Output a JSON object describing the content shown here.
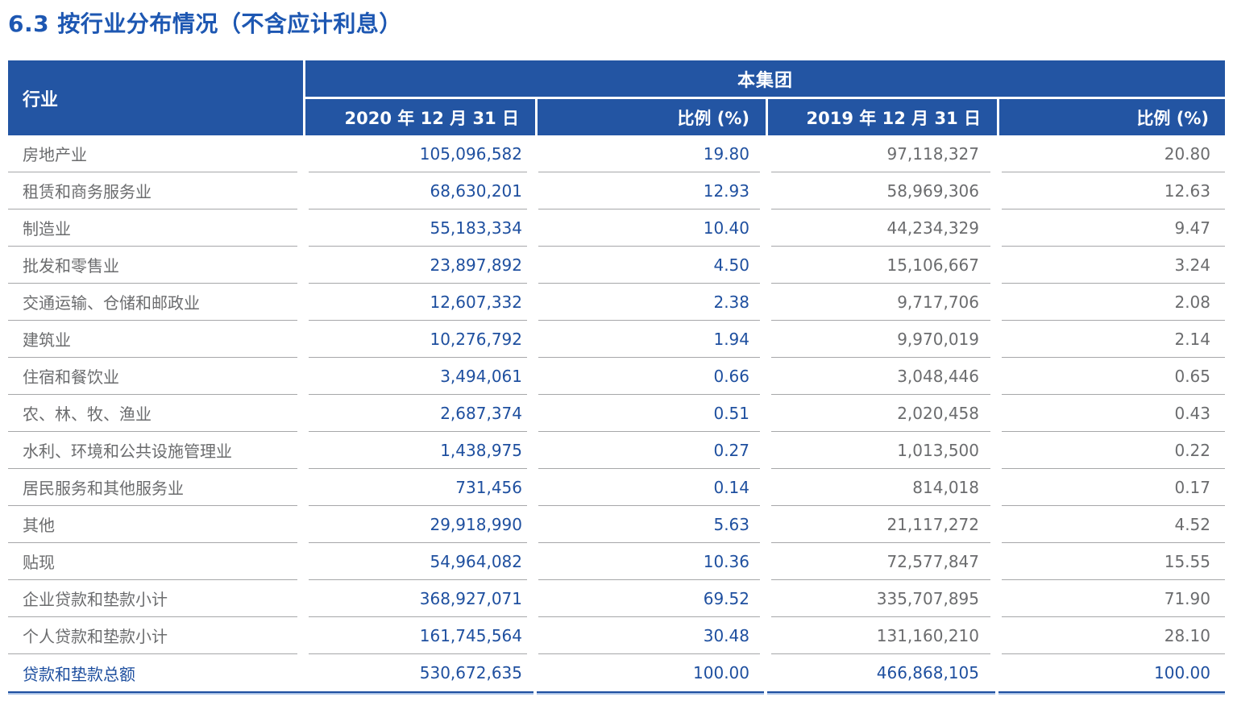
{
  "title": "6.3 按行业分布情况（不含应计利息）",
  "table": {
    "industry_header": "行业",
    "group_header": "本集团",
    "columns": [
      "2020 年 12 月 31 日",
      "比例 (%)",
      "2019 年 12 月 31 日",
      "比例 (%)"
    ],
    "rows": [
      {
        "industry": "房地产业",
        "v2020": "105,096,582",
        "p2020": "19.80",
        "v2019": "97,118,327",
        "p2019": "20.80"
      },
      {
        "industry": "租赁和商务服务业",
        "v2020": "68,630,201",
        "p2020": "12.93",
        "v2019": "58,969,306",
        "p2019": "12.63"
      },
      {
        "industry": "制造业",
        "v2020": "55,183,334",
        "p2020": "10.40",
        "v2019": "44,234,329",
        "p2019": "9.47"
      },
      {
        "industry": "批发和零售业",
        "v2020": "23,897,892",
        "p2020": "4.50",
        "v2019": "15,106,667",
        "p2019": "3.24"
      },
      {
        "industry": "交通运输、仓储和邮政业",
        "v2020": "12,607,332",
        "p2020": "2.38",
        "v2019": "9,717,706",
        "p2019": "2.08"
      },
      {
        "industry": "建筑业",
        "v2020": "10,276,792",
        "p2020": "1.94",
        "v2019": "9,970,019",
        "p2019": "2.14"
      },
      {
        "industry": "住宿和餐饮业",
        "v2020": "3,494,061",
        "p2020": "0.66",
        "v2019": "3,048,446",
        "p2019": "0.65"
      },
      {
        "industry": "农、林、牧、渔业",
        "v2020": "2,687,374",
        "p2020": "0.51",
        "v2019": "2,020,458",
        "p2019": "0.43"
      },
      {
        "industry": "水利、环境和公共设施管理业",
        "v2020": "1,438,975",
        "p2020": "0.27",
        "v2019": "1,013,500",
        "p2019": "0.22"
      },
      {
        "industry": "居民服务和其他服务业",
        "v2020": "731,456",
        "p2020": "0.14",
        "v2019": "814,018",
        "p2019": "0.17"
      },
      {
        "industry": "其他",
        "v2020": "29,918,990",
        "p2020": "5.63",
        "v2019": "21,117,272",
        "p2019": "4.52"
      },
      {
        "industry": "贴现",
        "v2020": "54,964,082",
        "p2020": "10.36",
        "v2019": "72,577,847",
        "p2019": "15.55"
      },
      {
        "industry": "企业贷款和垫款小计",
        "v2020": "368,927,071",
        "p2020": "69.52",
        "v2019": "335,707,895",
        "p2019": "71.90"
      },
      {
        "industry": "个人贷款和垫款小计",
        "v2020": "161,745,564",
        "p2020": "30.48",
        "v2019": "131,160,210",
        "p2019": "28.10"
      }
    ],
    "total_row": {
      "industry": "贷款和垫款总额",
      "v2020": "530,672,635",
      "p2020": "100.00",
      "v2019": "466,868,105",
      "p2019": "100.00"
    }
  },
  "colors": {
    "header_bg": "#2355A3",
    "title_blue": "#1D57B2",
    "number_blue": "#1E4F9F",
    "text_gray": "#6B6C6E",
    "separator_gray": "#A6A7A9",
    "bottom_rule_light": "#A9C2E6"
  }
}
